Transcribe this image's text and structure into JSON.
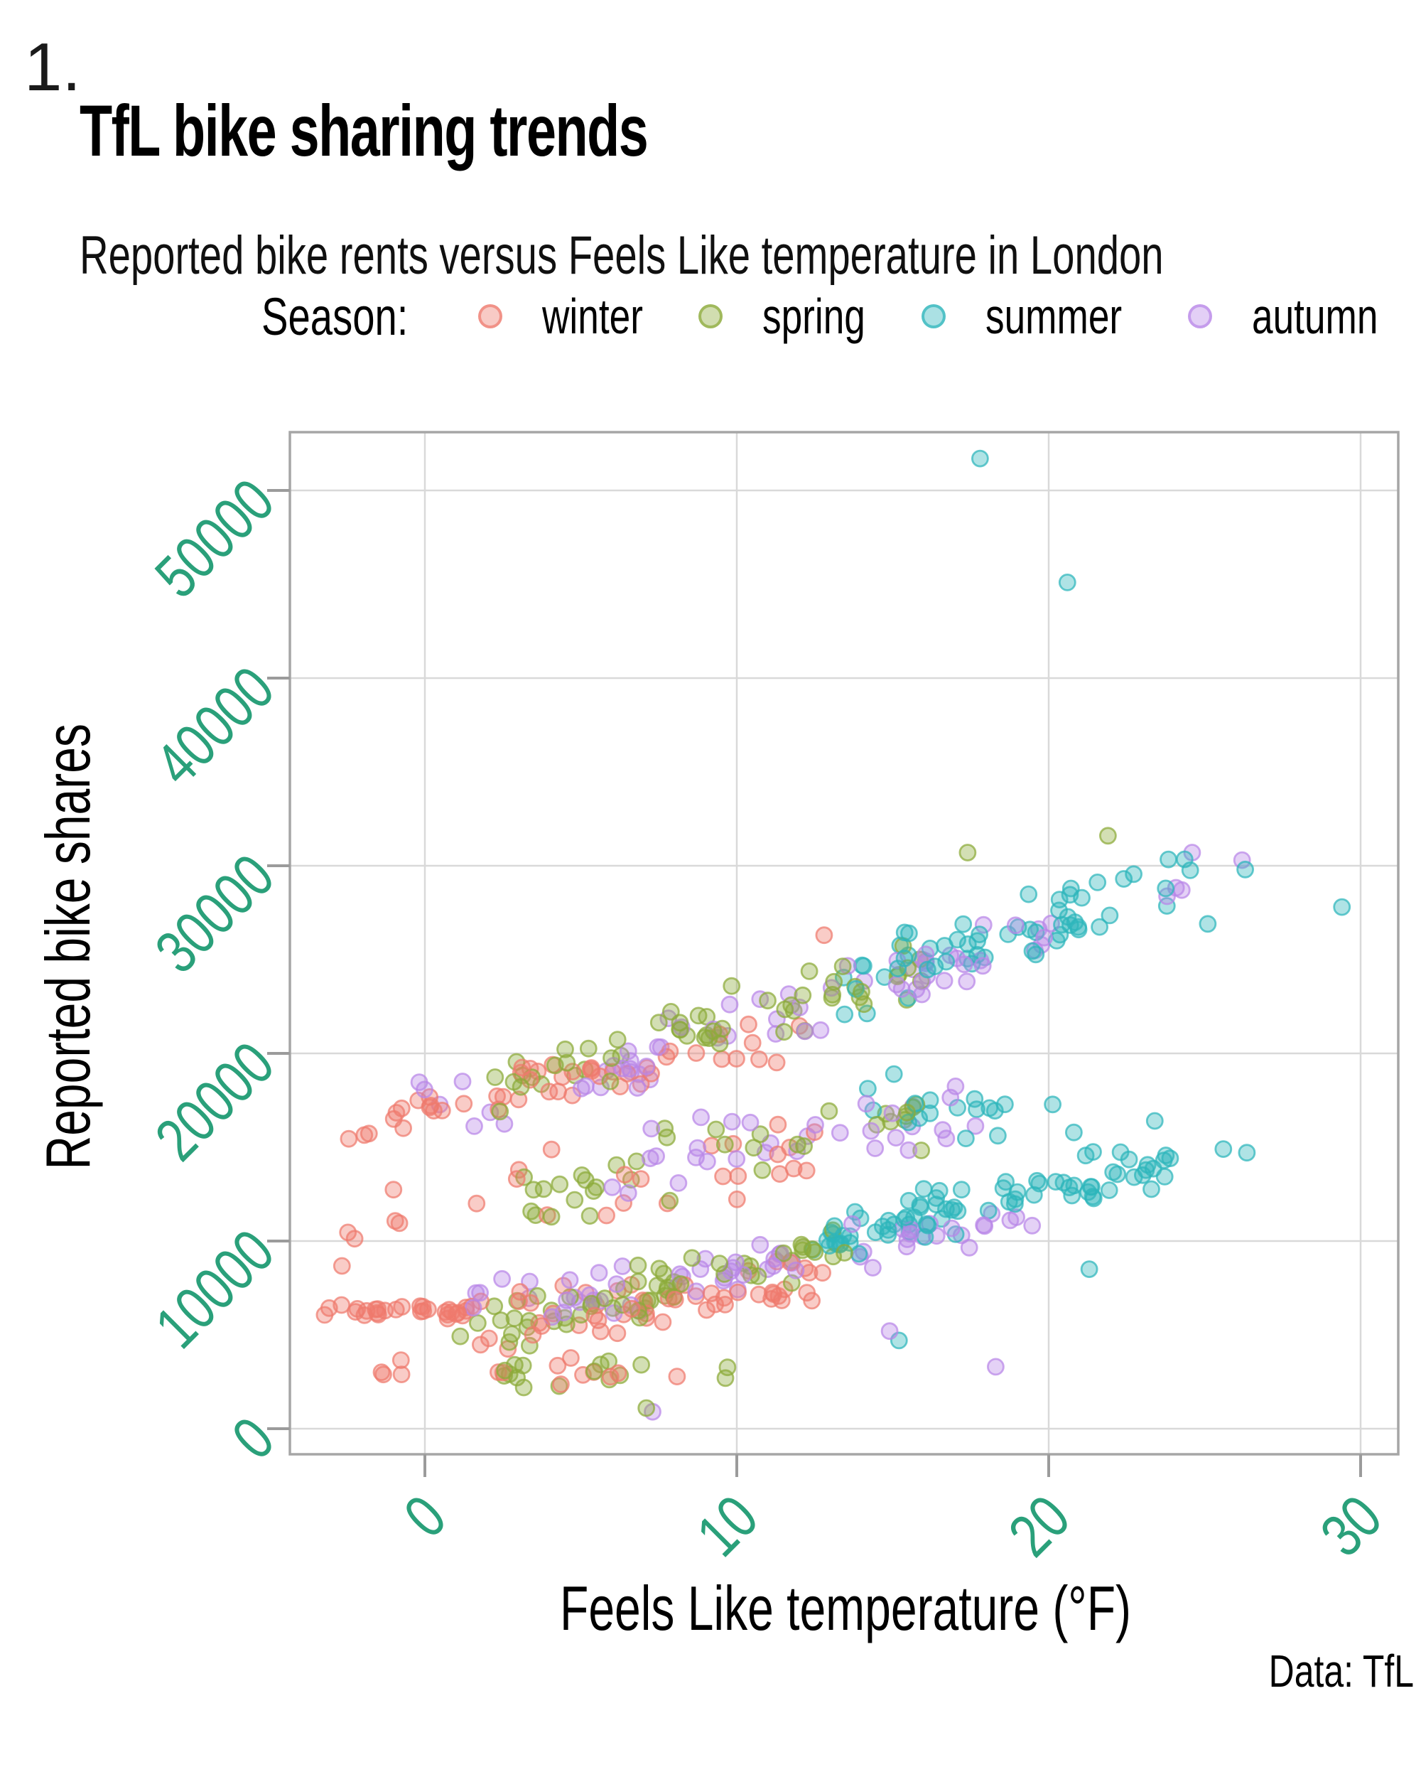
{
  "page": {
    "list_marker": "1."
  },
  "chart_data": {
    "type": "scatter",
    "title": "TfL bike sharing trends",
    "subtitle": "Reported bike rents versus Feels Like temperature in London",
    "xlabel": "Feels Like temperature (°F)",
    "ylabel": "Reported bike shares",
    "caption": "Data: TfL",
    "legend_title": "Season:",
    "legend_position": "top",
    "grid": true,
    "xlim": [
      -4.3,
      31.2
    ],
    "ylim": [
      -1360,
      53100
    ],
    "xticks": [
      0,
      10,
      20,
      30
    ],
    "yticks": [
      0,
      10000,
      20000,
      30000,
      40000,
      50000
    ],
    "tick_label_color": "#2aa07a",
    "grid_color": "#d9d9d9",
    "frame_color": "#a6a6a6",
    "tick_mark_color": "#9b9b9b",
    "text_color": "#000000",
    "seasons": [
      {
        "label": "winter",
        "color": "#ee7a6d"
      },
      {
        "label": "spring",
        "color": "#8caa39"
      },
      {
        "label": "summer",
        "color": "#2cb5bb"
      },
      {
        "label": "autumn",
        "color": "#b886e8"
      }
    ],
    "clusters": [
      {
        "season": "winter",
        "n": 50,
        "x": [
          -2.6,
          12.5
        ],
        "y0": 16300,
        "slope": 330,
        "spread": 1500
      },
      {
        "season": "winter",
        "n": 30,
        "x": [
          -3.3,
          1.6
        ],
        "y0": 6300,
        "slope": 0,
        "spread": 520
      },
      {
        "season": "winter",
        "n": 54,
        "x": [
          1.6,
          13
        ],
        "y0": 5700,
        "slope": 200,
        "spread": 1900
      },
      {
        "season": "winter",
        "n": 28,
        "x": [
          -3,
          12.5
        ],
        "y0": 10600,
        "slope": 280,
        "spread": 2800
      },
      {
        "season": "winter",
        "n": 14,
        "x": [
          -2.5,
          9
        ],
        "y0": 3000,
        "slope": 0,
        "spread": 1000
      },
      {
        "season": "spring",
        "n": 56,
        "x": [
          2,
          16.3
        ],
        "y0": 18200,
        "slope": 450,
        "spread": 2000
      },
      {
        "season": "spring",
        "n": 58,
        "x": [
          0.6,
          13.5
        ],
        "y0": 5200,
        "slope": 320,
        "spread": 1800
      },
      {
        "season": "spring",
        "n": 36,
        "x": [
          3,
          16
        ],
        "y0": 12400,
        "slope": 340,
        "spread": 2400
      },
      {
        "season": "spring",
        "n": 16,
        "x": [
          2,
          10.5
        ],
        "y0": 3100,
        "slope": 0,
        "spread": 1100
      },
      {
        "season": "summer",
        "n": 58,
        "x": [
          13,
          24.6
        ],
        "y0": 23200,
        "slope": 550,
        "spread": 2100
      },
      {
        "season": "summer",
        "n": 64,
        "x": [
          12.4,
          21.6
        ],
        "y0": 10200,
        "slope": 330,
        "spread": 1450
      },
      {
        "season": "summer",
        "n": 18,
        "x": [
          21,
          27.2
        ],
        "y0": 13300,
        "slope": 330,
        "spread": 1800
      },
      {
        "season": "summer",
        "n": 18,
        "x": [
          14,
          21.5
        ],
        "y0": 17300,
        "slope": 0,
        "spread": 2400
      },
      {
        "season": "autumn",
        "n": 58,
        "x": [
          5,
          20.6
        ],
        "y0": 18600,
        "slope": 540,
        "spread": 2100
      },
      {
        "season": "autumn",
        "n": 56,
        "x": [
          4,
          19.6
        ],
        "y0": 6800,
        "slope": 290,
        "spread": 1550
      },
      {
        "season": "autumn",
        "n": 32,
        "x": [
          6,
          19
        ],
        "y0": 13900,
        "slope": 260,
        "spread": 2500
      },
      {
        "season": "autumn",
        "n": 3,
        "x": [
          23.5,
          26.5
        ],
        "y0": 28600,
        "slope": 0,
        "spread": 900
      },
      {
        "season": "autumn",
        "n": 7,
        "x": [
          -0.5,
          4
        ],
        "y0": 17300,
        "slope": 0,
        "spread": 1700
      },
      {
        "season": "autumn",
        "n": 7,
        "x": [
          1.5,
          5
        ],
        "y0": 7600,
        "slope": 0,
        "spread": 1700
      }
    ],
    "outlier_points": [
      {
        "season": "winter",
        "x": 12.8,
        "y": 26300
      },
      {
        "season": "spring",
        "x": 21.9,
        "y": 31600
      },
      {
        "season": "spring",
        "x": 17.4,
        "y": 30700
      },
      {
        "season": "spring",
        "x": 7.1,
        "y": 1100
      },
      {
        "season": "summer",
        "x": 17.8,
        "y": 51700
      },
      {
        "season": "summer",
        "x": 20.6,
        "y": 45100
      },
      {
        "season": "summer",
        "x": 29.4,
        "y": 27800
      },
      {
        "season": "summer",
        "x": 26.3,
        "y": 29800
      },
      {
        "season": "summer",
        "x": 25.1,
        "y": 26900
      },
      {
        "season": "summer",
        "x": 21.3,
        "y": 8500
      },
      {
        "season": "summer",
        "x": 15.2,
        "y": 4700
      },
      {
        "season": "summer",
        "x": 25.6,
        "y": 14900
      },
      {
        "season": "summer",
        "x": 23.4,
        "y": 16400
      },
      {
        "season": "autumn",
        "x": 18.3,
        "y": 3300
      },
      {
        "season": "autumn",
        "x": 14.9,
        "y": 5200
      },
      {
        "season": "autumn",
        "x": 7.3,
        "y": 900
      },
      {
        "season": "autumn",
        "x": 24.6,
        "y": 30700
      },
      {
        "season": "autumn",
        "x": 26.2,
        "y": 30300
      }
    ]
  }
}
